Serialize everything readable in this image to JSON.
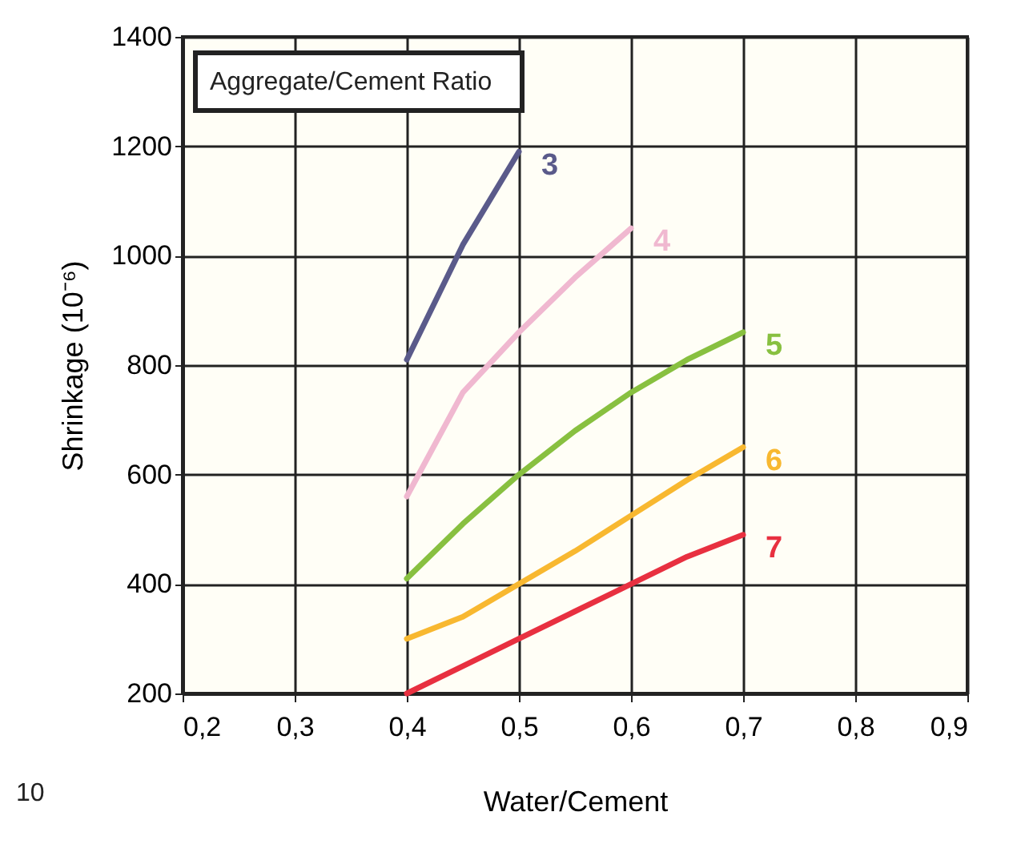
{
  "chart_data": {
    "type": "line",
    "xlabel": "Water/Cement",
    "ylabel": "Shrinkage (10⁻⁶)",
    "legend_title": "Aggregate/Cement Ratio",
    "annotations": [
      "10"
    ],
    "x": [
      0.4,
      0.45,
      0.5,
      0.55,
      0.6,
      0.65,
      0.7
    ],
    "series": [
      {
        "name": "3",
        "color": "#5a5a8a",
        "values": [
          810,
          1020,
          1190,
          null,
          null,
          null,
          null
        ]
      },
      {
        "name": "4",
        "color": "#f0b8d0",
        "values": [
          560,
          750,
          860,
          960,
          1050,
          null,
          null
        ]
      },
      {
        "name": "5",
        "color": "#88c040",
        "values": [
          410,
          510,
          600,
          680,
          750,
          810,
          860
        ]
      },
      {
        "name": "6",
        "color": "#f8b830",
        "values": [
          300,
          340,
          400,
          460,
          525,
          590,
          650
        ]
      },
      {
        "name": "7",
        "color": "#e83040",
        "values": [
          200,
          250,
          300,
          350,
          400,
          450,
          490
        ]
      }
    ],
    "xlim": [
      0.2,
      0.9
    ],
    "xticks": [
      {
        "value": 0.2,
        "label": "0,2"
      },
      {
        "value": 0.3,
        "label": "0,3"
      },
      {
        "value": 0.4,
        "label": "0,4"
      },
      {
        "value": 0.5,
        "label": "0,5"
      },
      {
        "value": 0.6,
        "label": "0,6"
      },
      {
        "value": 0.7,
        "label": "0,7"
      },
      {
        "value": 0.8,
        "label": "0,8"
      },
      {
        "value": 0.9,
        "label": "0,9"
      }
    ],
    "ylim": [
      200,
      1400
    ],
    "yticks": [
      200,
      400,
      600,
      800,
      1000,
      1200,
      1400
    ],
    "grid": true,
    "legend": false,
    "line_style": "solid",
    "marker": "none"
  }
}
